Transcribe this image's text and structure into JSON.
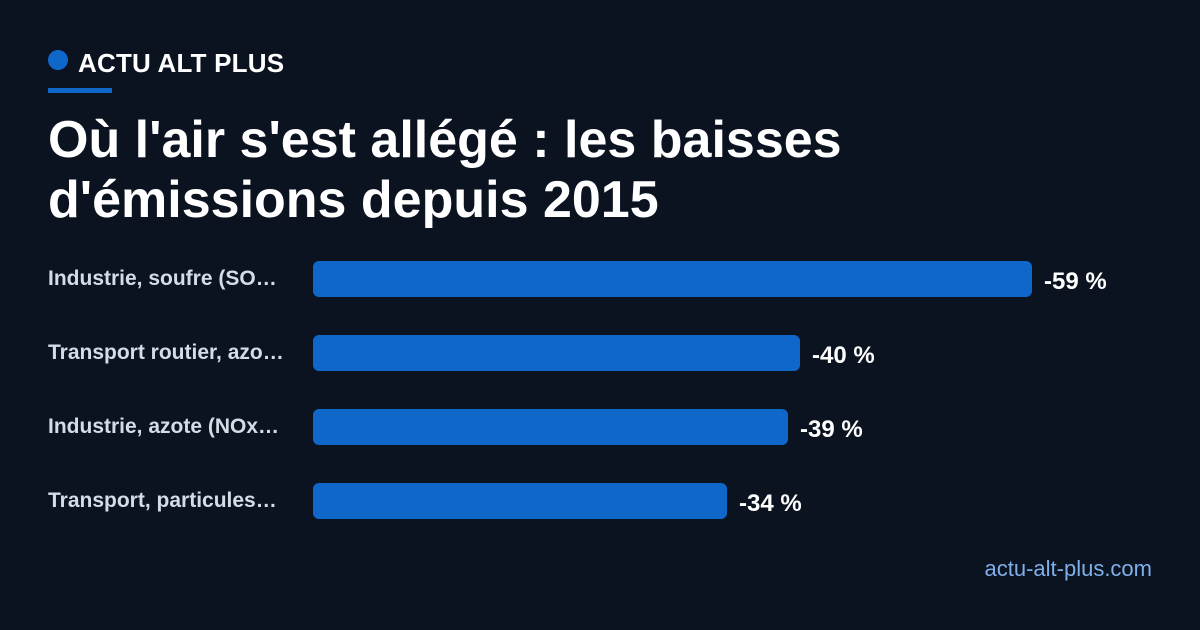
{
  "brand": {
    "name": "ACTU ALT PLUS"
  },
  "title": "Où l'air s'est allégé : les baisses d'émissions depuis 2015",
  "footer": {
    "site": "actu-alt-plus.com"
  },
  "colors": {
    "background": "#0b1220",
    "accent": "#0f67c9",
    "label": "#d4dce8",
    "footer": "#7fb0ea"
  },
  "chart_data": {
    "type": "bar",
    "orientation": "horizontal",
    "categories": [
      "Industrie, soufre (SO…",
      "Transport routier, azo…",
      "Industrie, azote (NOx…",
      "Transport, particules…"
    ],
    "values": [
      -59,
      -40,
      -39,
      -34
    ],
    "value_labels": [
      "-59 %",
      "-40 %",
      "-39 %",
      "-34 %"
    ],
    "unit": "%",
    "grid": false
  }
}
